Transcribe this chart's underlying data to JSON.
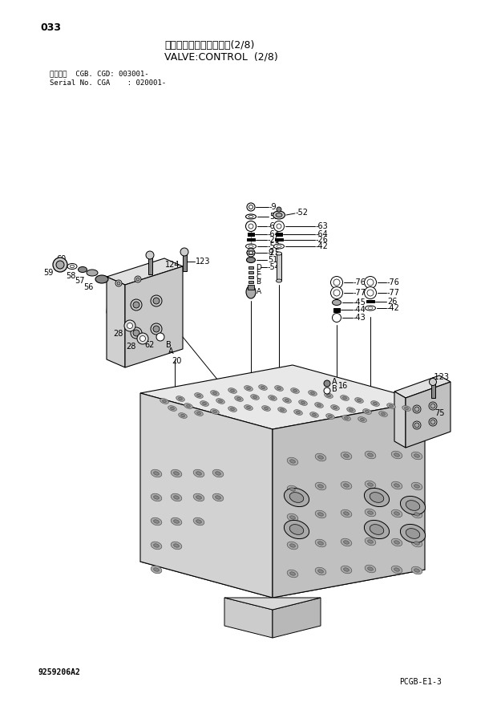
{
  "title_jp": "バルブ：コントロール　(2/8)",
  "title_en": "VALVE:CONTROL  (2/8)",
  "page_num": "033",
  "serial_line1": "適用号機  CGB. CGD: 003001-",
  "serial_line2": "Serial No. CGA    : 020001-",
  "bottom_left": "9259206A2",
  "bottom_right": "PCGB-E1-3",
  "bg": "#ffffff",
  "fg": "#000000"
}
